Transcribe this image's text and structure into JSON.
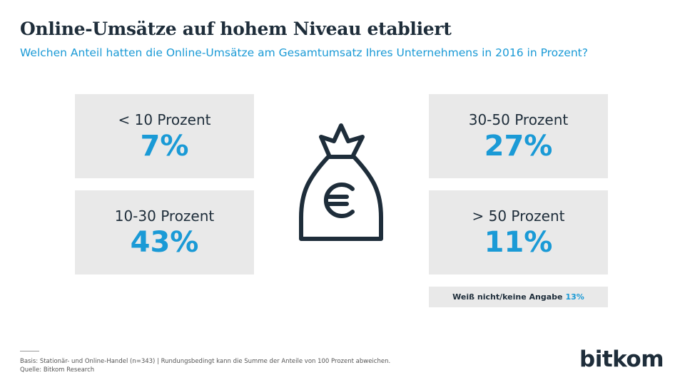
{
  "header": {
    "title": "Online-Umsätze auf hohem Niveau etabliert",
    "subtitle": "Welchen Anteil hatten die Online-Umsätze am Gesamtumsatz Ihres Unternehmens in 2016 in Prozent?"
  },
  "boxes": [
    {
      "label": "< 10 Prozent",
      "value": "7%"
    },
    {
      "label": "10-30 Prozent",
      "value": "43%"
    },
    {
      "label": "30-50 Prozent",
      "value": "27%"
    },
    {
      "label": "> 50 Prozent",
      "value": "11%"
    }
  ],
  "extra": {
    "label": "Weiß nicht/keine Angabe",
    "value": "13%"
  },
  "footer": {
    "basis": "Basis: Stationär- und Online-Handel (n=343) | Rundungsbedingt kann die Summe der Anteile von 100 Prozent abweichen.",
    "source": "Quelle: Bitkom Research",
    "logo": "bitkom"
  }
}
